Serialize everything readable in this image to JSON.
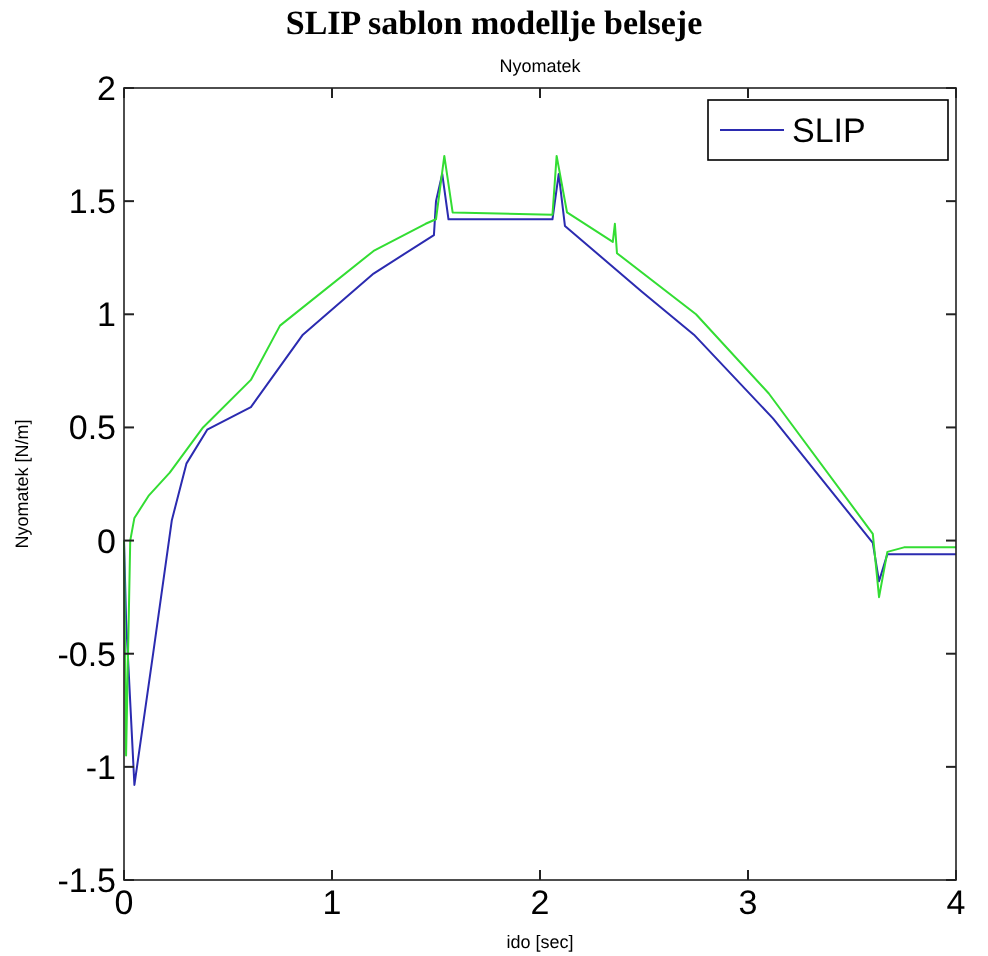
{
  "chart_data": {
    "type": "line",
    "title": "SLIP sablon modellje belseje",
    "subtitle": "Nyomatek",
    "xlabel": "ido [sec]",
    "ylabel": "Nyomatek [N/m]",
    "xlim": [
      0,
      4
    ],
    "ylim": [
      -1.5,
      2
    ],
    "xticks": [
      0,
      1,
      2,
      3,
      4
    ],
    "yticks": [
      -1.5,
      -1,
      -0.5,
      0,
      0.5,
      1,
      1.5,
      2
    ],
    "grid": false,
    "legend": "top right",
    "line_style": "solid",
    "series": [
      {
        "name": "SLIP",
        "color": "#2b2bb0",
        "x": [
          0,
          0.01,
          0.05,
          0.14,
          0.23,
          0.3,
          0.4,
          0.61,
          0.86,
          1.2,
          1.49,
          1.5,
          1.53,
          1.56,
          2.06,
          2.09,
          2.12,
          2.49,
          2.74,
          3.12,
          3.6,
          3.63,
          3.67,
          4
        ],
        "values": [
          0,
          -0.35,
          -1.08,
          -0.5,
          0.09,
          0.34,
          0.49,
          0.59,
          0.91,
          1.18,
          1.35,
          1.5,
          1.62,
          1.42,
          1.42,
          1.62,
          1.39,
          1.1,
          0.91,
          0.54,
          -0.01,
          -0.18,
          -0.06,
          -0.06
        ]
      },
      {
        "color": "#33dd33",
        "x": [
          0,
          0.01,
          0.03,
          0.05,
          0.12,
          0.22,
          0.38,
          0.61,
          0.75,
          1.2,
          1.45,
          1.5,
          1.54,
          1.58,
          2.06,
          2.08,
          2.13,
          2.35,
          2.36,
          2.37,
          2.75,
          3.1,
          3.6,
          3.63,
          3.67,
          3.75,
          4
        ],
        "values": [
          0,
          -0.95,
          0,
          0.1,
          0.2,
          0.3,
          0.5,
          0.71,
          0.95,
          1.28,
          1.4,
          1.42,
          1.7,
          1.45,
          1.44,
          1.7,
          1.45,
          1.32,
          1.4,
          1.27,
          1.0,
          0.65,
          0.03,
          -0.25,
          -0.05,
          -0.03,
          -0.03
        ]
      }
    ]
  }
}
